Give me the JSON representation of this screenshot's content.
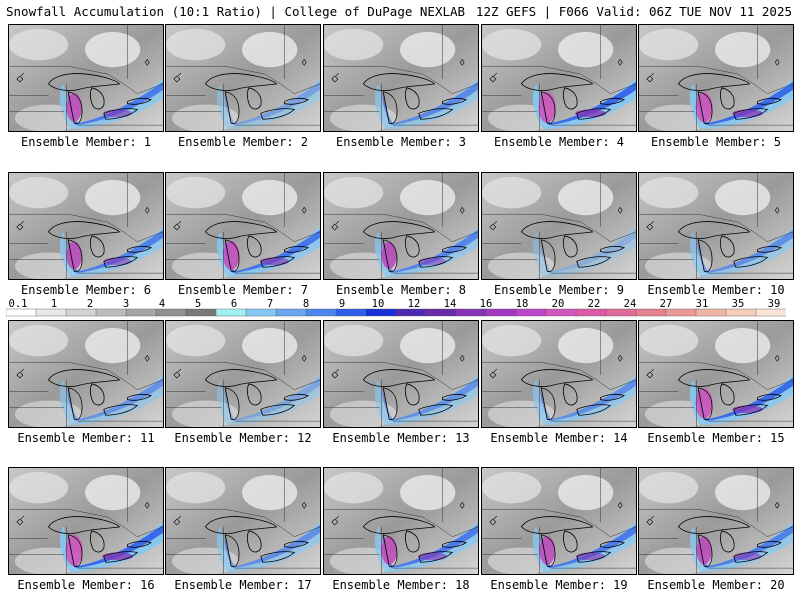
{
  "header": {
    "title": "Snowfall Accumulation (10:1 Ratio) | College of DuPage NEXLAB",
    "run_info": "12Z GEFS | F066 Valid: 06Z TUE NOV 11 2025"
  },
  "colorbar": {
    "labels": [
      "0.1",
      "1",
      "2",
      "3",
      "4",
      "5",
      "6",
      "7",
      "8",
      "9",
      "10",
      "12",
      "14",
      "16",
      "18",
      "20",
      "22",
      "24",
      "27",
      "31",
      "35",
      "39"
    ],
    "colors": [
      "#ffffff",
      "#e8e8e8",
      "#d2d2d2",
      "#bcbcbc",
      "#a6a6a6",
      "#909090",
      "#787878",
      "#a0f0f0",
      "#86c8f4",
      "#6aa6f2",
      "#4a86ee",
      "#2f5ee8",
      "#1730d8",
      "#4f2ab0",
      "#6a2aa8",
      "#8632b6",
      "#a238c0",
      "#be46c8",
      "#d058bc",
      "#dc5aa8",
      "#e06a98",
      "#e48090",
      "#ea9a96",
      "#f0b4a4",
      "#f4ccb8",
      "#f8e4d8"
    ]
  },
  "members": [
    {
      "label": "Ensemble Member: 1",
      "intensity": 0.75
    },
    {
      "label": "Ensemble Member: 2",
      "intensity": 0.35
    },
    {
      "label": "Ensemble Member: 3",
      "intensity": 0.6
    },
    {
      "label": "Ensemble Member: 4",
      "intensity": 0.95
    },
    {
      "label": "Ensemble Member: 5",
      "intensity": 0.9
    },
    {
      "label": "Ensemble Member: 6",
      "intensity": 0.7
    },
    {
      "label": "Ensemble Member: 7",
      "intensity": 0.8
    },
    {
      "label": "Ensemble Member: 8",
      "intensity": 0.65
    },
    {
      "label": "Ensemble Member: 9",
      "intensity": 0.2
    },
    {
      "label": "Ensemble Member: 10",
      "intensity": 0.55
    },
    {
      "label": "Ensemble Member: 11",
      "intensity": 0.5
    },
    {
      "label": "Ensemble Member: 12",
      "intensity": 0.3
    },
    {
      "label": "Ensemble Member: 13",
      "intensity": 0.5
    },
    {
      "label": "Ensemble Member: 14",
      "intensity": 0.55
    },
    {
      "label": "Ensemble Member: 15",
      "intensity": 0.9
    },
    {
      "label": "Ensemble Member: 16",
      "intensity": 0.95
    },
    {
      "label": "Ensemble Member: 17",
      "intensity": 0.55
    },
    {
      "label": "Ensemble Member: 18",
      "intensity": 0.75
    },
    {
      "label": "Ensemble Member: 19",
      "intensity": 0.75
    },
    {
      "label": "Ensemble Member: 20",
      "intensity": 0.7
    }
  ]
}
